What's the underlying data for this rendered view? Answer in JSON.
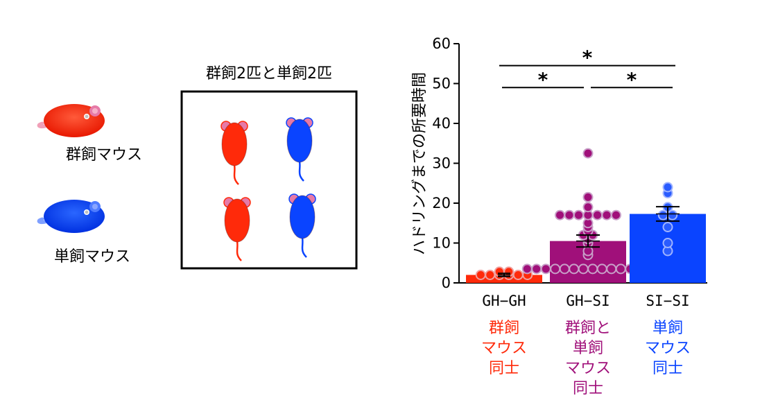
{
  "legend": {
    "group_housed_label": "群飼マウス",
    "single_housed_label": "単飼マウス"
  },
  "arena": {
    "title": "群飼2匹と単飼2匹"
  },
  "colors": {
    "group": "#ff2a0a",
    "mixed": "#a0107a",
    "single": "#0a44ff",
    "mouse_red": "#ff2a0a",
    "mouse_blue": "#0a44ff",
    "ear_pink": "#e67aa8"
  },
  "icons": {
    "group_mouse": "mouse-side-red-icon",
    "single_mouse": "mouse-side-blue-icon",
    "arena_mouse_red": "mouse-top-red-icon",
    "arena_mouse_blue": "mouse-top-blue-icon"
  },
  "chart_data": {
    "type": "bar",
    "ylabel": "ハドリングまでの所要時間",
    "ylim": [
      0,
      60
    ],
    "yticks": [
      "0",
      "10",
      "20",
      "30",
      "40",
      "50",
      "60"
    ],
    "categories": [
      "GH−GH",
      "GH−SI",
      "SI−SI"
    ],
    "group_labels": [
      [
        "群飼",
        "マウス",
        "同士"
      ],
      [
        "群飼と",
        "単飼",
        "マウス",
        "同士"
      ],
      [
        "単飼",
        "マウス",
        "同士"
      ]
    ],
    "values": [
      2,
      10.5,
      17.3
    ],
    "errors": [
      0.4,
      1.5,
      1.8
    ],
    "points": [
      [
        2,
        2,
        2,
        2,
        2,
        2,
        2.8,
        2.8
      ],
      [
        3.5,
        3.5,
        3.5,
        3.5,
        3.5,
        3.5,
        3.5,
        3.5,
        3.5,
        3.5,
        3.5,
        3.5,
        3.5,
        3.5,
        7,
        8,
        10,
        11,
        12,
        12,
        13,
        14,
        15,
        17,
        17,
        17,
        17,
        17,
        17,
        17,
        19,
        21.5,
        32.5
      ],
      [
        8,
        10,
        14,
        17,
        17,
        19,
        22.5,
        24
      ]
    ],
    "significance": [
      {
        "from": 0,
        "to": 1,
        "y": 49,
        "label": "*"
      },
      {
        "from": 1,
        "to": 2,
        "y": 49,
        "label": "*"
      },
      {
        "from": 0,
        "to": 2,
        "y": 54.5,
        "label": "*"
      }
    ],
    "grid": false,
    "legend": "none"
  }
}
